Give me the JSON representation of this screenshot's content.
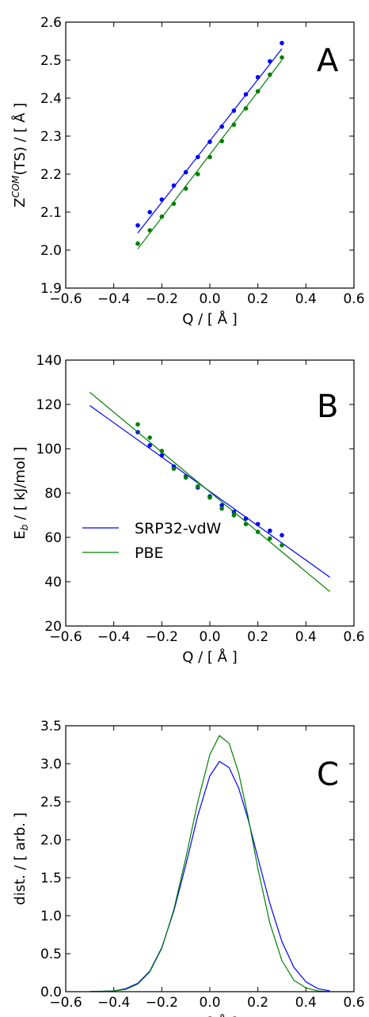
{
  "colors": {
    "blue": "#0000ff",
    "green": "#008000"
  },
  "chart_data": [
    {
      "type": "scatter",
      "panel": "A",
      "xlabel": "Q / [ Å ]",
      "ylabel": "Z",
      "ylabel_sup": "COM",
      "ylabel_rest": "(TS) / [ Å ]",
      "xlim": [
        -0.6,
        0.6
      ],
      "ylim": [
        1.9,
        2.6
      ],
      "xticks": [
        -0.6,
        -0.4,
        -0.2,
        0.0,
        0.2,
        0.4,
        0.6
      ],
      "yticks": [
        1.9,
        2.0,
        2.1,
        2.2,
        2.3,
        2.4,
        2.5,
        2.6
      ],
      "xtick_labels": [
        "−0.6",
        "−0.4",
        "−0.2",
        "0.0",
        "0.2",
        "0.4",
        "0.6"
      ],
      "ytick_labels": [
        "1.9",
        "2.0",
        "2.1",
        "2.2",
        "2.3",
        "2.4",
        "2.5",
        "2.6"
      ],
      "x": [
        -0.3,
        -0.25,
        -0.2,
        -0.15,
        -0.1,
        -0.05,
        0.0,
        0.05,
        0.1,
        0.15,
        0.2,
        0.25,
        0.3
      ],
      "series": [
        {
          "color": "blue",
          "values": [
            2.065,
            2.1,
            2.133,
            2.17,
            2.205,
            2.245,
            2.285,
            2.325,
            2.367,
            2.41,
            2.455,
            2.497,
            2.545
          ],
          "fit": [
            [
              -0.3,
              2.045
            ],
            [
              0.3,
              2.53
            ]
          ]
        },
        {
          "color": "green",
          "values": [
            2.017,
            2.052,
            2.088,
            2.122,
            2.162,
            2.2,
            2.245,
            2.287,
            2.33,
            2.373,
            2.418,
            2.462,
            2.507
          ],
          "fit": [
            [
              -0.3,
              2.003
            ],
            [
              0.3,
              2.5
            ]
          ]
        }
      ]
    },
    {
      "type": "scatter",
      "panel": "B",
      "xlabel": "Q / [ Å ]",
      "ylabel": "E",
      "ylabel_sub": "b",
      "ylabel_rest": " / [ kJ/mol ]",
      "xlim": [
        -0.6,
        0.6
      ],
      "ylim": [
        20,
        140
      ],
      "xticks": [
        -0.6,
        -0.4,
        -0.2,
        0.0,
        0.2,
        0.4,
        0.6
      ],
      "yticks": [
        20,
        40,
        60,
        80,
        100,
        120,
        140
      ],
      "xtick_labels": [
        "−0.6",
        "−0.4",
        "−0.2",
        "0.0",
        "0.2",
        "0.4",
        "0.6"
      ],
      "ytick_labels": [
        "20",
        "40",
        "60",
        "80",
        "100",
        "120",
        "140"
      ],
      "legend": {
        "position": "lower-left",
        "entries": [
          {
            "label": "SRP32-vdW",
            "color": "blue"
          },
          {
            "label": "PBE",
            "color": "green"
          }
        ]
      },
      "x": [
        -0.3,
        -0.25,
        -0.2,
        -0.15,
        -0.1,
        -0.05,
        0.0,
        0.05,
        0.1,
        0.15,
        0.2,
        0.25,
        0.3
      ],
      "series": [
        {
          "name": "SRP32-vdW",
          "color": "blue",
          "values": [
            107.5,
            101.5,
            97.0,
            92.0,
            87.5,
            82.5,
            78.5,
            74.5,
            71.5,
            68.5,
            66.0,
            63.0,
            61.0
          ],
          "fit": [
            [
              -0.5,
              119.5
            ],
            [
              0.5,
              42.0
            ]
          ]
        },
        {
          "name": "PBE",
          "color": "green",
          "values": [
            111.0,
            105.0,
            99.0,
            91.0,
            87.0,
            83.0,
            78.0,
            73.0,
            70.0,
            66.0,
            62.5,
            59.5,
            56.5
          ],
          "fit": [
            [
              -0.5,
              125.5
            ],
            [
              0.5,
              35.5
            ]
          ]
        }
      ]
    },
    {
      "type": "line",
      "panel": "C",
      "xlabel": "Q / [ Å ]",
      "ylabel": "dist. / [ arb. ]",
      "xlim": [
        -0.6,
        0.6
      ],
      "ylim": [
        0.0,
        3.5
      ],
      "xticks": [
        -0.6,
        -0.4,
        -0.2,
        0.0,
        0.2,
        0.4,
        0.6
      ],
      "yticks": [
        0.0,
        0.5,
        1.0,
        1.5,
        2.0,
        2.5,
        3.0,
        3.5
      ],
      "xtick_labels": [
        "−0.6",
        "−0.4",
        "−0.2",
        "0.0",
        "0.2",
        "0.4",
        "0.6"
      ],
      "ytick_labels": [
        "0.0",
        "0.5",
        "1.0",
        "1.5",
        "2.0",
        "2.5",
        "3.0",
        "3.5"
      ],
      "series": [
        {
          "color": "blue",
          "x": [
            -0.5,
            -0.4,
            -0.35,
            -0.3,
            -0.25,
            -0.2,
            -0.15,
            -0.1,
            -0.05,
            0.0,
            0.04,
            0.08,
            0.12,
            0.16,
            0.2,
            0.25,
            0.3,
            0.35,
            0.4,
            0.45,
            0.5
          ],
          "values": [
            0.0,
            0.01,
            0.04,
            0.11,
            0.27,
            0.58,
            1.06,
            1.67,
            2.32,
            2.84,
            3.03,
            2.95,
            2.68,
            2.26,
            1.76,
            1.16,
            0.66,
            0.32,
            0.13,
            0.04,
            0.01
          ]
        },
        {
          "color": "green",
          "x": [
            -0.5,
            -0.4,
            -0.35,
            -0.3,
            -0.25,
            -0.2,
            -0.15,
            -0.1,
            -0.05,
            0.0,
            0.04,
            0.08,
            0.12,
            0.16,
            0.2,
            0.25,
            0.3,
            0.35,
            0.4,
            0.45,
            0.5
          ],
          "values": [
            0.0,
            0.01,
            0.03,
            0.1,
            0.26,
            0.57,
            1.08,
            1.76,
            2.5,
            3.12,
            3.37,
            3.27,
            2.88,
            2.29,
            1.62,
            0.9,
            0.41,
            0.15,
            0.05,
            0.01,
            0.0
          ]
        }
      ]
    }
  ]
}
